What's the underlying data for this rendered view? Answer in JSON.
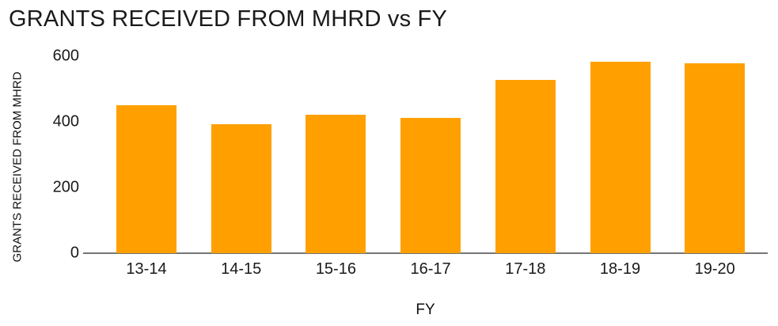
{
  "chart_data": {
    "type": "bar",
    "title": "GRANTS RECEIVED FROM MHRD vs FY",
    "xlabel": "FY",
    "ylabel": "GRANTS RECEIVED FROM MHRD",
    "categories": [
      "13-14",
      "14-15",
      "15-16",
      "16-17",
      "17-18",
      "18-19",
      "19-20"
    ],
    "values": [
      450,
      393,
      421,
      412,
      528,
      582,
      578
    ],
    "ylim": [
      0,
      600
    ],
    "yticks": [
      0,
      200,
      400,
      600
    ],
    "grid": "off",
    "legend": "none",
    "colors": {
      "bar": "#FFA000",
      "axis_line": "#757575",
      "text": "#1a1a1a"
    }
  }
}
